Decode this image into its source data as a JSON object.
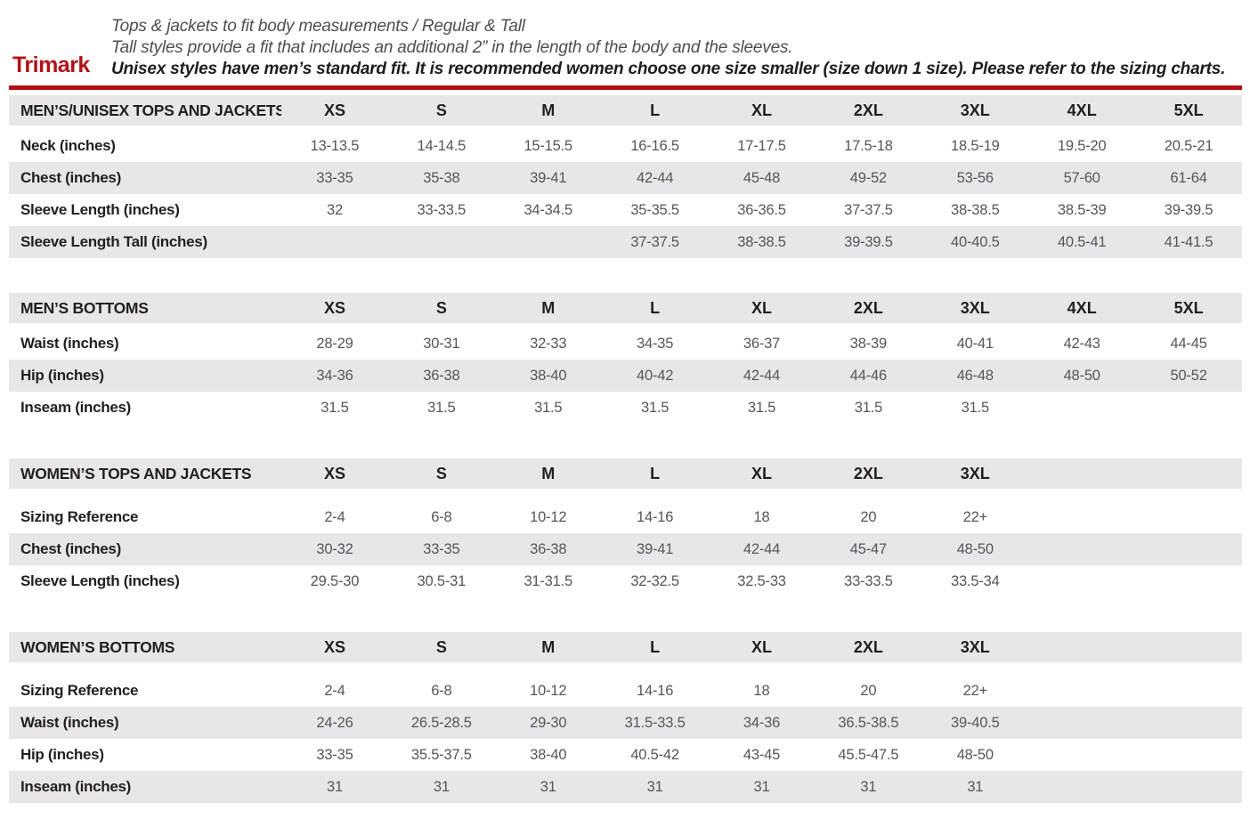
{
  "page": {
    "brand": "Trimark",
    "accent_color": "#b11218",
    "row_alt_color": "#e7e7e8",
    "intro_lines": [
      "Tops & jackets to fit body measurements / Regular & Tall",
      "Tall styles provide a fit that includes an additional 2” in the length of the body and the sleeves.",
      "Unisex styles have men’s standard fit. It is recommended women choose one size smaller (size down 1 size).  Please refer to the sizing charts."
    ]
  },
  "tables": [
    {
      "title": "MEN’S/UNISEX TOPS AND JACKETS",
      "sizes": [
        "XS",
        "S",
        "M",
        "L",
        "XL",
        "2XL",
        "3XL",
        "4XL",
        "5XL"
      ],
      "rows": [
        {
          "label": "Neck (inches)",
          "values": [
            "13-13.5",
            "14-14.5",
            "15-15.5",
            "16-16.5",
            "17-17.5",
            "17.5-18",
            "18.5-19",
            "19.5-20",
            "20.5-21"
          ]
        },
        {
          "label": "Chest (inches)",
          "values": [
            "33-35",
            "35-38",
            "39-41",
            "42-44",
            "45-48",
            "49-52",
            "53-56",
            "57-60",
            "61-64"
          ]
        },
        {
          "label": "Sleeve Length (inches)",
          "values": [
            "32",
            "33-33.5",
            "34-34.5",
            "35-35.5",
            "36-36.5",
            "37-37.5",
            "38-38.5",
            "38.5-39",
            "39-39.5"
          ]
        },
        {
          "label": "Sleeve Length Tall (inches)",
          "values": [
            "",
            "",
            "",
            "37-37.5",
            "38-38.5",
            "39-39.5",
            "40-40.5",
            "40.5-41",
            "41-41.5"
          ]
        }
      ]
    },
    {
      "title": "MEN’S BOTTOMS",
      "sizes": [
        "XS",
        "S",
        "M",
        "L",
        "XL",
        "2XL",
        "3XL",
        "4XL",
        "5XL"
      ],
      "rows": [
        {
          "label": "Waist (inches)",
          "values": [
            "28-29",
            "30-31",
            "32-33",
            "34-35",
            "36-37",
            "38-39",
            "40-41",
            "42-43",
            "44-45"
          ]
        },
        {
          "label": "Hip (inches)",
          "values": [
            "34-36",
            "36-38",
            "38-40",
            "40-42",
            "42-44",
            "44-46",
            "46-48",
            "48-50",
            "50-52"
          ]
        },
        {
          "label": "Inseam (inches)",
          "values": [
            "31.5",
            "31.5",
            "31.5",
            "31.5",
            "31.5",
            "31.5",
            "31.5",
            "",
            ""
          ]
        }
      ]
    },
    {
      "title": "WOMEN’S TOPS AND JACKETS",
      "sizes": [
        "XS",
        "S",
        "M",
        "L",
        "XL",
        "2XL",
        "3XL",
        "",
        ""
      ],
      "rows": [
        {
          "label": "Sizing Reference",
          "values": [
            "2-4",
            "6-8",
            "10-12",
            "14-16",
            "18",
            "20",
            "22+",
            "",
            ""
          ]
        },
        {
          "label": "Chest (inches)",
          "values": [
            "30-32",
            "33-35",
            "36-38",
            "39-41",
            "42-44",
            "45-47",
            "48-50",
            "",
            ""
          ]
        },
        {
          "label": "Sleeve Length (inches)",
          "values": [
            "29.5-30",
            "30.5-31",
            "31-31.5",
            "32-32.5",
            "32.5-33",
            "33-33.5",
            "33.5-34",
            "",
            ""
          ]
        }
      ]
    },
    {
      "title": "WOMEN’S BOTTOMS",
      "sizes": [
        "XS",
        "S",
        "M",
        "L",
        "XL",
        "2XL",
        "3XL",
        "",
        ""
      ],
      "rows": [
        {
          "label": "Sizing Reference",
          "values": [
            "2-4",
            "6-8",
            "10-12",
            "14-16",
            "18",
            "20",
            "22+",
            "",
            ""
          ]
        },
        {
          "label": "Waist (inches)",
          "values": [
            "24-26",
            "26.5-28.5",
            "29-30",
            "31.5-33.5",
            "34-36",
            "36.5-38.5",
            "39-40.5",
            "",
            ""
          ]
        },
        {
          "label": "Hip (inches)",
          "values": [
            "33-35",
            "35.5-37.5",
            "38-40",
            "40.5-42",
            "43-45",
            "45.5-47.5",
            "48-50",
            "",
            ""
          ]
        },
        {
          "label": "Inseam (inches)",
          "values": [
            "31",
            "31",
            "31",
            "31",
            "31",
            "31",
            "31",
            "",
            ""
          ]
        }
      ]
    }
  ]
}
